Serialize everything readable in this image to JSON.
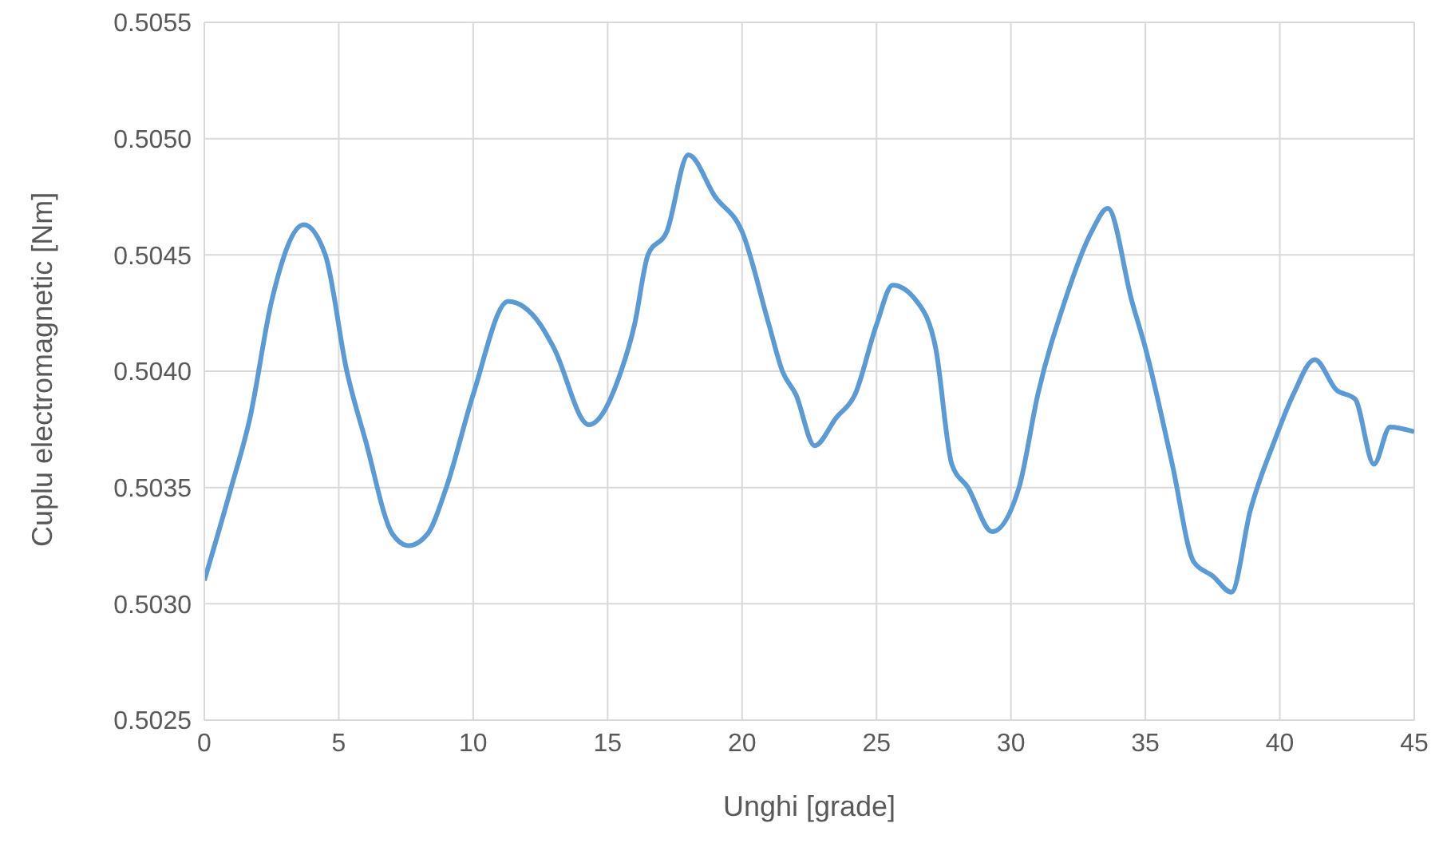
{
  "chart_data": {
    "type": "line",
    "xlabel": "Unghi [grade]",
    "ylabel": "Cuplu electromagnetic [Nm]",
    "xlim": [
      0,
      45
    ],
    "xticks": [
      0,
      5,
      10,
      15,
      20,
      25,
      30,
      35,
      40,
      45
    ],
    "ylim": [
      0.5025,
      0.5055
    ],
    "yticks": [
      {
        "value": 0.5025,
        "label": "0.5025"
      },
      {
        "value": 0.503,
        "label": "0.5030"
      },
      {
        "value": 0.5035,
        "label": "0.5035"
      },
      {
        "value": 0.504,
        "label": "0.5040"
      },
      {
        "value": 0.5045,
        "label": "0.5045"
      },
      {
        "value": 0.505,
        "label": "0.5050"
      },
      {
        "value": 0.5055,
        "label": "0.5055"
      }
    ],
    "grid": true,
    "legend": false,
    "marker": "none",
    "line_style": "solid",
    "x": [
      0,
      1,
      1.7,
      2.5,
      3.7,
      4.5,
      5.3,
      6,
      7,
      7.6,
      8.3,
      9,
      10,
      11.3,
      12.5,
      13,
      14.3,
      15.5,
      16,
      16.5,
      17.2,
      18,
      19,
      20,
      21,
      21.5,
      22,
      22.7,
      23.5,
      24.2,
      25,
      25.6,
      26.5,
      27.2,
      27.8,
      28.4,
      29.3,
      30.3,
      31,
      32,
      33,
      33.6,
      34.5,
      35,
      36,
      36.8,
      37.5,
      38.2,
      38.9,
      39.8,
      40.5,
      41.3,
      42.1,
      42.8,
      43.5,
      44.1,
      45
    ],
    "series": [
      {
        "color": "#5b9bd5",
        "values": [
          0.5031,
          0.5035,
          0.5038,
          0.5043,
          0.50463,
          0.5045,
          0.504,
          0.5037,
          0.5033,
          0.50325,
          0.5033,
          0.5035,
          0.5039,
          0.5043,
          0.5042,
          0.5041,
          0.50377,
          0.504,
          0.5042,
          0.5045,
          0.5046,
          0.50493,
          0.50475,
          0.5046,
          0.5042,
          0.504,
          0.5039,
          0.50368,
          0.5038,
          0.5039,
          0.5042,
          0.50437,
          0.5043,
          0.5041,
          0.5036,
          0.5035,
          0.50331,
          0.5035,
          0.5039,
          0.5043,
          0.5046,
          0.5047,
          0.5043,
          0.5041,
          0.5036,
          0.50318,
          0.50312,
          0.50305,
          0.5034,
          0.5037,
          0.5039,
          0.50405,
          0.50392,
          0.50388,
          0.5036,
          0.50376,
          0.50374
        ]
      }
    ]
  }
}
